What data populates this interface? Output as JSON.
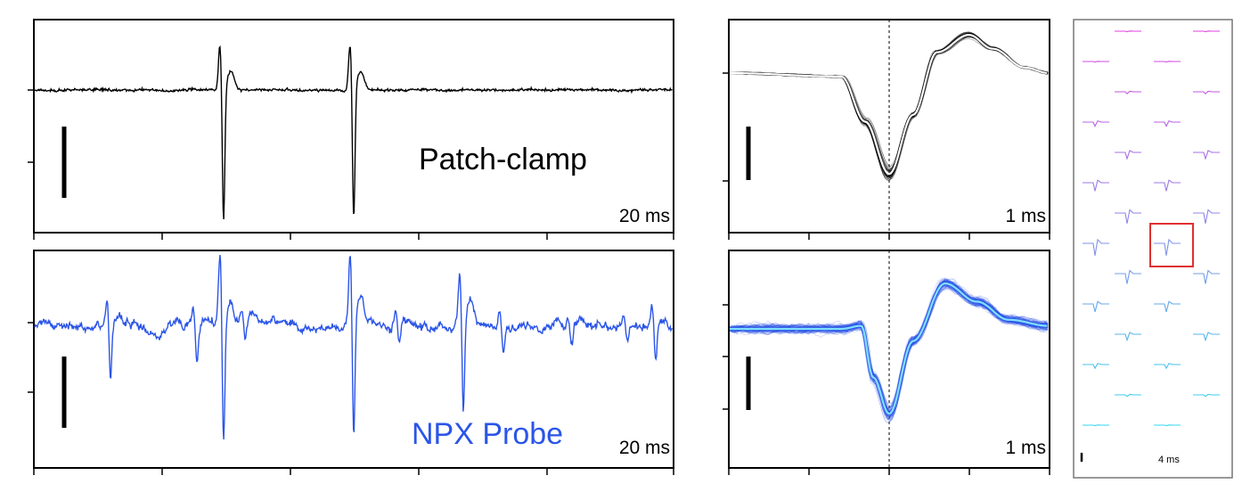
{
  "chart_data": [
    {
      "id": "patch-trace",
      "type": "line",
      "label": "Patch-clamp",
      "time_scale_label": "20 ms",
      "color": "#000000",
      "spike_times_ms": [
        74,
        125
      ],
      "xlim_ms": [
        0,
        250
      ]
    },
    {
      "id": "npx-trace",
      "type": "line",
      "label": "NPX Probe",
      "time_scale_label": "20 ms",
      "color": "#2b55e8",
      "spike_times_ms": [
        74,
        125
      ],
      "xlim_ms": [
        0,
        250
      ]
    },
    {
      "id": "patch-waveforms",
      "type": "line",
      "time_scale_label": "1 ms",
      "trace_color": "#000000",
      "mean_color": "#ffffff",
      "xlim_ms": [
        -2,
        2
      ],
      "mean_waveform": {
        "t_ms": [
          -2.0,
          -0.6,
          -0.3,
          0.0,
          0.3,
          0.6,
          1.0,
          1.3,
          1.7,
          2.0
        ],
        "v": [
          0.0,
          -0.05,
          -0.7,
          -1.45,
          -0.6,
          0.3,
          0.55,
          0.35,
          0.08,
          0.0
        ]
      }
    },
    {
      "id": "npx-waveforms",
      "type": "line",
      "time_scale_label": "1 ms",
      "trace_color": "#2b55e8",
      "mean_color": "#7fe0ff",
      "xlim_ms": [
        -2,
        2
      ],
      "mean_waveform": {
        "t_ms": [
          -2.0,
          -0.6,
          -0.35,
          -0.2,
          0.0,
          0.3,
          0.7,
          1.1,
          1.5,
          2.0
        ],
        "v": [
          0.0,
          0.0,
          0.05,
          -0.8,
          -1.4,
          -0.2,
          0.75,
          0.45,
          0.15,
          0.05
        ]
      }
    },
    {
      "id": "probe-map",
      "type": "scatter",
      "time_scale_label": "4 ms",
      "highlight_color": "#e03030",
      "channel_color_top": "#e040e0",
      "channel_color_bottom": "#30d8f0",
      "highlight_index": 15
    }
  ]
}
